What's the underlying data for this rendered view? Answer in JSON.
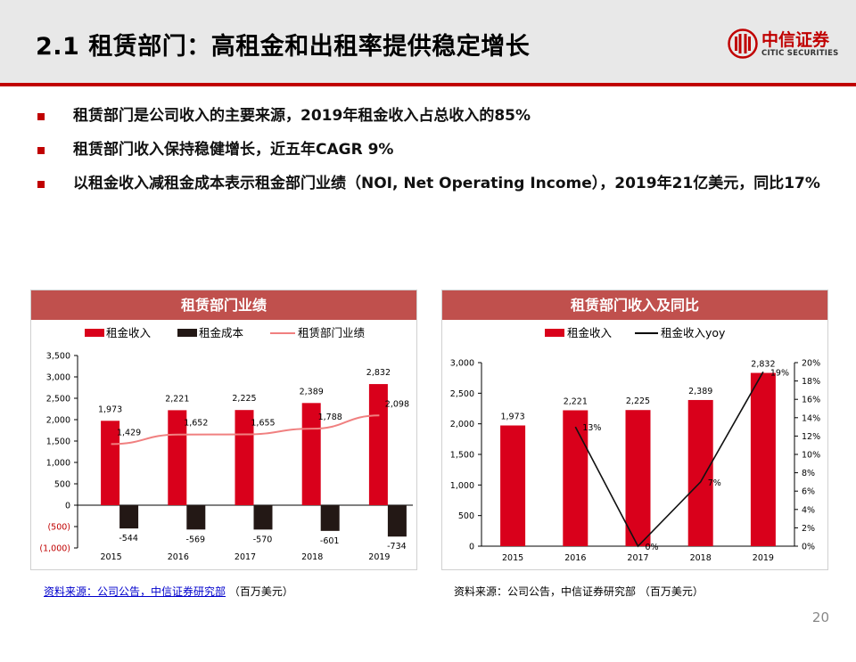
{
  "header": {
    "title": "2.1 租赁部门：高租金和出租率提供稳定增长",
    "logo_cn": "中信证券",
    "logo_en": "CITIC SECURITIES"
  },
  "bullets": [
    "租赁部门是公司收入的主要来源，2019年租金收入占总收入的85%",
    "租赁部门收入保持稳健增长，近五年CAGR 9%",
    "以租金收入减租金成本表示租金部门业绩（NOI,  Net Operating Income），2019年21亿美元，同比17%"
  ],
  "colors": {
    "brand": "#c00000",
    "bar_red": "#d9001b",
    "bar_dark": "#231815",
    "line_pink": "#f08080",
    "panel_head": "#c0504d"
  },
  "panel_left": {
    "title": "租赁部门业绩",
    "source_underlined": "资料来源：公司公告，中信证券研究部",
    "source_unit": "（百万美元）"
  },
  "panel_right": {
    "title": "租赁部门收入及同比",
    "source": "资料来源：公司公告，中信证券研究部 （百万美元）"
  },
  "page_number": "20",
  "chart_data": [
    {
      "type": "bar",
      "categories": [
        "2015",
        "2016",
        "2017",
        "2018",
        "2019"
      ],
      "series": [
        {
          "name": "租金收入",
          "kind": "bar",
          "values": [
            1973,
            2221,
            2225,
            2389,
            2832
          ],
          "labels": [
            "1,973",
            "2,221",
            "2,225",
            "2,389",
            "2,832"
          ]
        },
        {
          "name": "租金成本",
          "kind": "bar",
          "values": [
            -544,
            -569,
            -570,
            -601,
            -734
          ],
          "labels": [
            "-544",
            "-569",
            "-570",
            "-601",
            "-734"
          ]
        },
        {
          "name": "租赁部门业绩",
          "kind": "line",
          "values": [
            1429,
            1652,
            1655,
            1788,
            2098
          ],
          "labels": [
            "1,429",
            "1,652",
            "1,655",
            "1,788",
            "2,098"
          ]
        }
      ],
      "ylim": [
        -1000,
        3500
      ],
      "yticks": [
        "3,500",
        "3,000",
        "2,500",
        "2,000",
        "1,500",
        "1,000",
        "500",
        "0",
        "(500)",
        "(1,000)"
      ],
      "legend": "top"
    },
    {
      "type": "bar",
      "categories": [
        "2015",
        "2016",
        "2017",
        "2018",
        "2019"
      ],
      "series": [
        {
          "name": "租金收入",
          "kind": "bar",
          "axis": "left",
          "values": [
            1973,
            2221,
            2225,
            2389,
            2832
          ],
          "labels": [
            "1,973",
            "2,221",
            "2,225",
            "2,389",
            "2,832"
          ]
        },
        {
          "name": "租金收入yoy",
          "kind": "line",
          "axis": "right",
          "values": [
            null,
            13,
            0,
            7,
            19
          ],
          "labels": [
            "",
            "13%",
            "0%",
            "7%",
            "19%"
          ]
        }
      ],
      "ylim": [
        0,
        3000
      ],
      "y2lim": [
        0,
        20
      ],
      "yticks": [
        "3,000",
        "2,500",
        "2,000",
        "1,500",
        "1,000",
        "500",
        "0"
      ],
      "y2ticks": [
        "20%",
        "18%",
        "16%",
        "14%",
        "12%",
        "10%",
        "8%",
        "6%",
        "4%",
        "2%",
        "0%"
      ],
      "legend": "top"
    }
  ]
}
